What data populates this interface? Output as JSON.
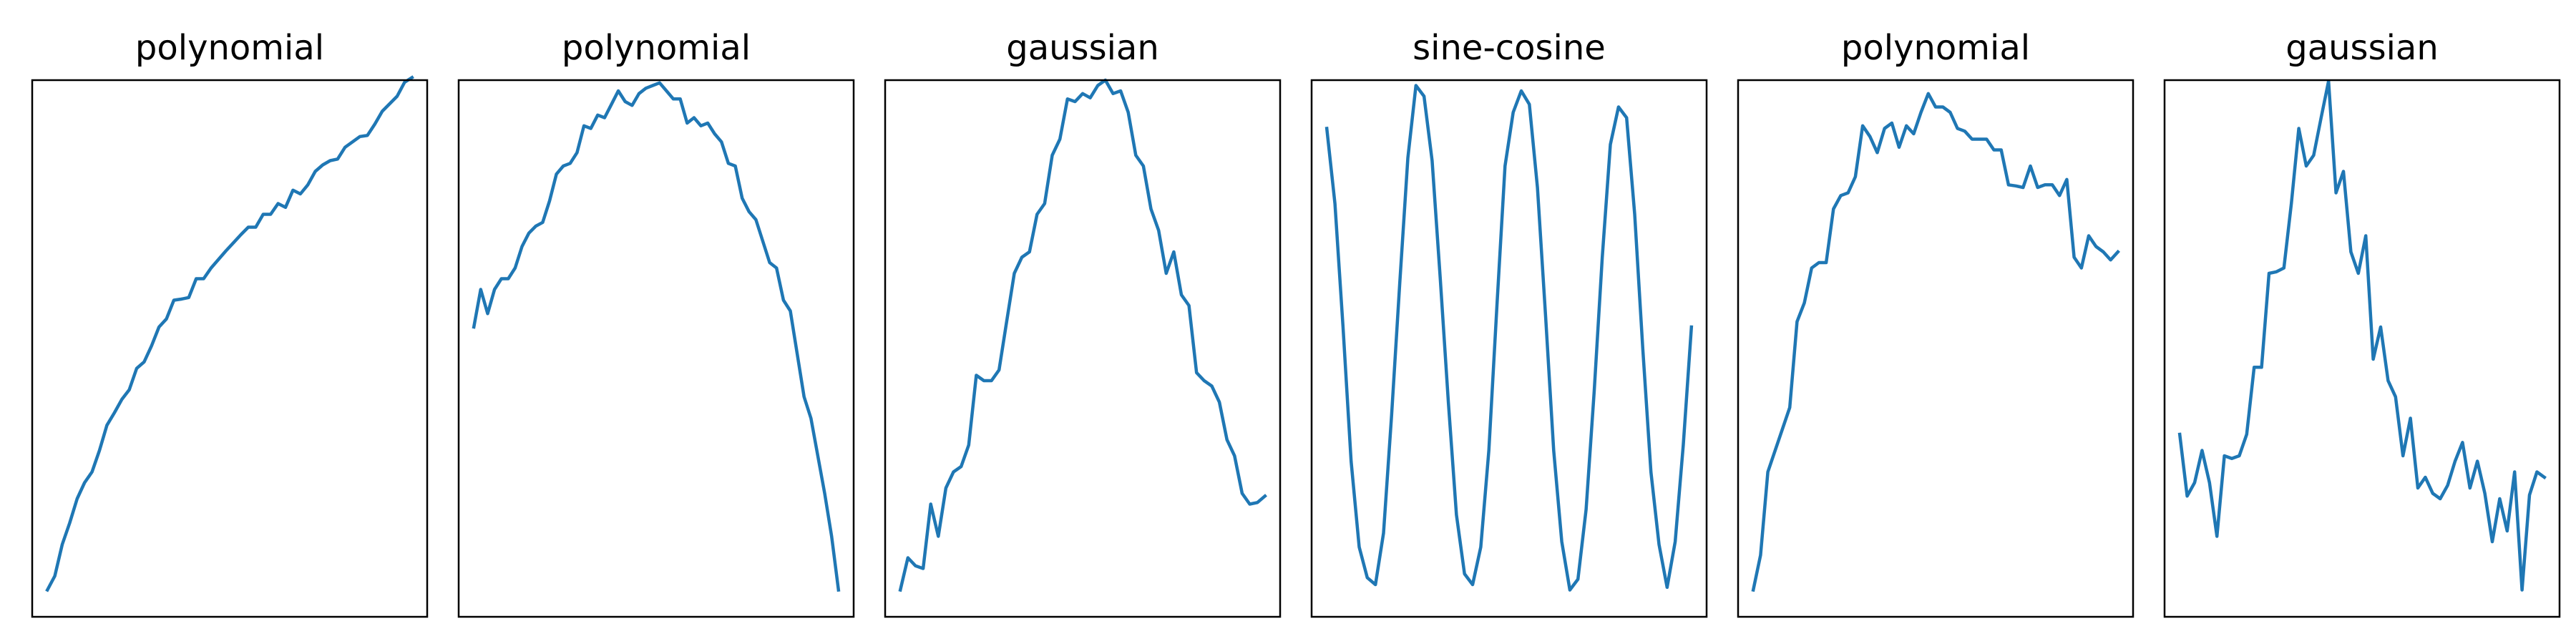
{
  "figure": {
    "background": "#ffffff",
    "line_color": "#1f77b4",
    "frame_color": "#000000"
  },
  "chart_data": [
    {
      "type": "line",
      "title": "polynomial",
      "xlabel": "",
      "ylabel": "",
      "ticks": "none",
      "grid": false,
      "legend": "none",
      "xlim": [
        -2,
        50
      ],
      "ylim": [
        -4,
        96
      ],
      "series": [
        {
          "values": [
            1,
            3.6,
            9.5,
            13.5,
            18,
            21,
            23,
            27,
            31.7,
            34,
            36.5,
            38.3,
            42.3,
            43.5,
            46.5,
            50,
            51.5,
            55,
            55.2,
            55.5,
            59,
            59,
            61,
            62.6,
            64.2,
            65.7,
            67.2,
            68.6,
            68.6,
            71,
            71,
            73,
            72.3,
            75.5,
            74.8,
            76.5,
            79,
            80.2,
            81,
            81.3,
            83.5,
            84.5,
            85.5,
            85.7,
            87.8,
            90.2,
            91.6,
            93,
            95.6,
            96.5
          ]
        }
      ]
    },
    {
      "type": "line",
      "title": "polynomial",
      "xlabel": "",
      "ylabel": "",
      "ticks": "none",
      "grid": false,
      "legend": "none",
      "xlim": [
        -2,
        50
      ],
      "ylim": [
        -4,
        96
      ],
      "series": [
        {
          "values": [
            50,
            57,
            52.5,
            57,
            59,
            59,
            61,
            65,
            67.5,
            68.8,
            69.5,
            73.5,
            78.5,
            80,
            80.5,
            82.5,
            87.5,
            87,
            89.5,
            89,
            91.5,
            94,
            92,
            91.3,
            93.5,
            94.5,
            95,
            95.5,
            94,
            92.5,
            92.5,
            88,
            89,
            87.5,
            88,
            86,
            84.5,
            80.5,
            80,
            74,
            71.5,
            70,
            66,
            62,
            61,
            55,
            53,
            45,
            37,
            33,
            26,
            19,
            11,
            1
          ]
        }
      ]
    },
    {
      "type": "line",
      "title": "gaussian",
      "xlabel": "",
      "ylabel": "",
      "ticks": "none",
      "grid": false,
      "legend": "none",
      "xlim": [
        -2,
        50
      ],
      "ylim": [
        -4,
        96
      ],
      "series": [
        {
          "values": [
            1,
            7,
            5.5,
            5,
            17,
            11,
            20,
            23,
            24,
            28,
            41,
            40,
            40,
            42,
            51,
            60,
            63,
            64,
            71,
            73,
            82,
            85,
            92.5,
            92,
            93.5,
            92.7,
            95,
            96,
            93.5,
            94,
            90,
            82,
            80,
            72,
            68,
            60,
            64,
            56,
            54,
            41.5,
            40,
            39,
            36,
            29,
            26,
            19,
            17,
            17.3,
            18.5
          ]
        }
      ]
    },
    {
      "type": "line",
      "title": "sine-cosine",
      "xlabel": "",
      "ylabel": "",
      "ticks": "none",
      "grid": false,
      "legend": "none",
      "xlim": [
        -2,
        50
      ],
      "ylim": [
        -4,
        96
      ],
      "series": [
        {
          "values": [
            87,
            73,
            50,
            25,
            9,
            3.3,
            2,
            11.6,
            33.6,
            58,
            81.5,
            95,
            93,
            81,
            59,
            36,
            15,
            4,
            2,
            9,
            27,
            54,
            80,
            90,
            94,
            91.5,
            76,
            52,
            27,
            10,
            1,
            3,
            16,
            38,
            63,
            84,
            91,
            89,
            71,
            46,
            23,
            9.5,
            1.5,
            10,
            28,
            50
          ]
        }
      ]
    },
    {
      "type": "line",
      "title": "polynomial",
      "xlabel": "",
      "ylabel": "",
      "ticks": "none",
      "grid": false,
      "legend": "none",
      "xlim": [
        -2,
        50
      ],
      "ylim": [
        -4,
        96
      ],
      "series": [
        {
          "values": [
            1,
            7.5,
            23,
            27,
            31,
            35,
            51,
            54.5,
            61,
            62,
            62,
            72,
            74.5,
            75,
            78,
            87.5,
            85.5,
            82.5,
            87,
            88,
            83.5,
            87.5,
            86,
            90,
            93.5,
            91,
            91,
            90,
            87,
            86.5,
            85,
            85,
            85,
            83,
            83,
            76.5,
            76.3,
            76,
            80,
            76,
            76.5,
            76.5,
            74.5,
            77.5,
            63,
            61,
            67,
            65,
            64,
            62.5,
            64
          ]
        }
      ]
    },
    {
      "type": "line",
      "title": "gaussian",
      "xlabel": "",
      "ylabel": "",
      "ticks": "none",
      "grid": false,
      "legend": "none",
      "xlim": [
        -2,
        50
      ],
      "ylim": [
        -4,
        96
      ],
      "series": [
        {
          "values": [
            30,
            18.5,
            21,
            27,
            21,
            11,
            26,
            25.5,
            26,
            30,
            42.5,
            42.5,
            60,
            60.3,
            61,
            73,
            87,
            80,
            82,
            89,
            95.8,
            75,
            79,
            64,
            60,
            67,
            44,
            50,
            40,
            37,
            26,
            33,
            20,
            22,
            19,
            18,
            20.5,
            25,
            28.5,
            20,
            25,
            19,
            10,
            18,
            12,
            23,
            1,
            18.7,
            23,
            22
          ]
        }
      ]
    }
  ]
}
